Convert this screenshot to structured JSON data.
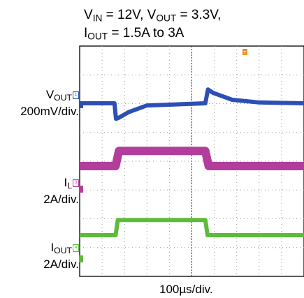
{
  "chart_data": {
    "type": "line",
    "title_line1": "V_IN = 12V, V_OUT = 3.3V,",
    "title_line2": "I_OUT = 1.5A to 3A",
    "title_parts": {
      "l1": [
        [
          "V",
          ""
        ],
        [
          "IN",
          "sub"
        ],
        [
          " = 12V, V",
          ""
        ],
        [
          "OUT",
          "sub"
        ],
        [
          " = 3.3V,",
          ""
        ]
      ],
      "l2": [
        [
          "I",
          ""
        ],
        [
          "OUT",
          "sub"
        ],
        [
          " = 1.5A to 3A",
          ""
        ]
      ]
    },
    "xlabel": "100µs/div.",
    "x_divisions": 10,
    "y_divisions": 8,
    "trigger_marker": "T",
    "grid": true,
    "series": [
      {
        "name": "V_OUT",
        "channel_tag": "1",
        "color": "#2d4fb5",
        "scale": "200mV/div.",
        "x": [
          0,
          1.55,
          1.62,
          1.72,
          2.2,
          3.0,
          5.6,
          5.72,
          5.95,
          6.8,
          8.0,
          10
        ],
        "y": [
          0,
          0,
          -0.36,
          -0.34,
          -0.2,
          -0.05,
          0,
          0.32,
          0.24,
          0.08,
          0.02,
          0
        ]
      },
      {
        "name": "I_L",
        "channel_tag": "3",
        "color": "#b23d9b",
        "scale": "2A/div.",
        "x": [
          0,
          1.6,
          1.75,
          5.6,
          5.75,
          10
        ],
        "y": [
          1.5,
          1.5,
          3,
          3,
          1.5,
          1.5
        ]
      },
      {
        "name": "I_OUT",
        "channel_tag": "4",
        "color": "#5dbb3a",
        "scale": "2A/div.",
        "x": [
          0,
          1.6,
          1.7,
          5.6,
          5.7,
          10
        ],
        "y": [
          1.5,
          1.5,
          3,
          3,
          1.5,
          1.5
        ]
      }
    ],
    "channel_labels": [
      {
        "parts": [
          [
            "V",
            ""
          ],
          [
            "OUT",
            "sub"
          ]
        ],
        "scale": "200mV/div.",
        "tag": "1",
        "color": "#2d4fb5"
      },
      {
        "parts": [
          [
            "I",
            ""
          ],
          [
            "L",
            "sub"
          ]
        ],
        "scale": "2A/div.",
        "tag": "3",
        "color": "#b23d9b"
      },
      {
        "parts": [
          [
            "I",
            ""
          ],
          [
            "OUT",
            "sub"
          ]
        ],
        "scale": "2A/div.",
        "tag": "4",
        "color": "#5dbb3a"
      }
    ]
  }
}
